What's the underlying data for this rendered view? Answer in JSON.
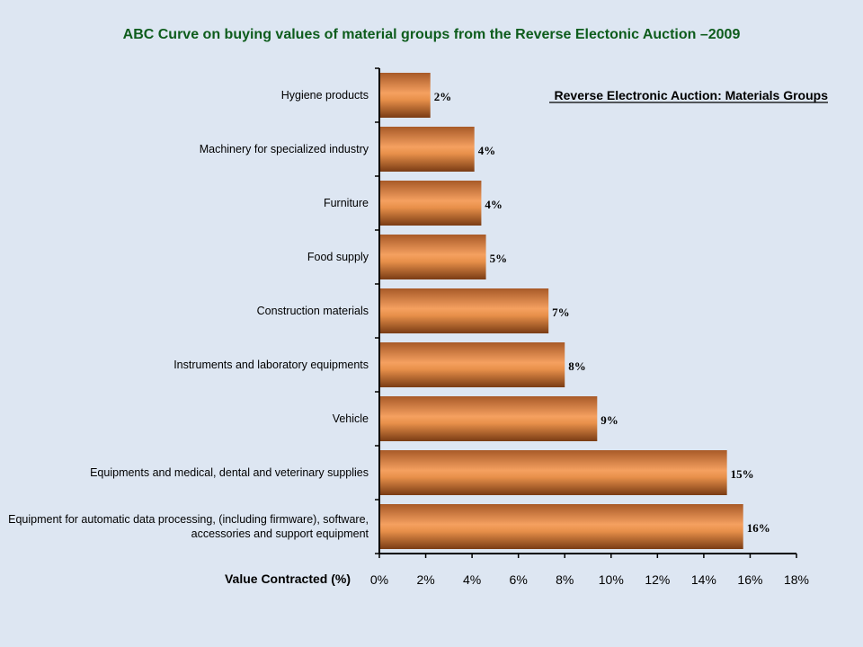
{
  "slide": {
    "title": "ABC Curve on buying values of material groups from the Reverse Electonic Auction –2009"
  },
  "chart_data": {
    "type": "bar",
    "orientation": "horizontal",
    "title": "Reverse Electronic Auction: Materials Groups",
    "xlabel": "Value Contracted (%)",
    "ylabel": "",
    "xlim": [
      0,
      18
    ],
    "x_ticks": [
      "0%",
      "2%",
      "4%",
      "6%",
      "8%",
      "10%",
      "12%",
      "14%",
      "16%",
      "18%"
    ],
    "grid": false,
    "bar_color": "#e8904a",
    "categories": [
      [
        "Hygiene products"
      ],
      [
        "Machinery for specialized industry"
      ],
      [
        "Furniture"
      ],
      [
        "Food supply"
      ],
      [
        "Construction materials"
      ],
      [
        "Instruments and  laboratory equipments"
      ],
      [
        "Vehicle"
      ],
      [
        "Equipments and medical, dental and veterinary supplies"
      ],
      [
        "Equipment for automatic data processing, (including firmware), software,",
        "accessories and support equipment"
      ]
    ],
    "values": [
      2.2,
      4.1,
      4.4,
      4.6,
      7.3,
      8.0,
      9.4,
      15.0,
      15.7
    ],
    "data_labels": [
      "2%",
      "4%",
      "4%",
      "5%",
      "7%",
      "8%",
      "9%",
      "15%",
      "16%"
    ]
  }
}
